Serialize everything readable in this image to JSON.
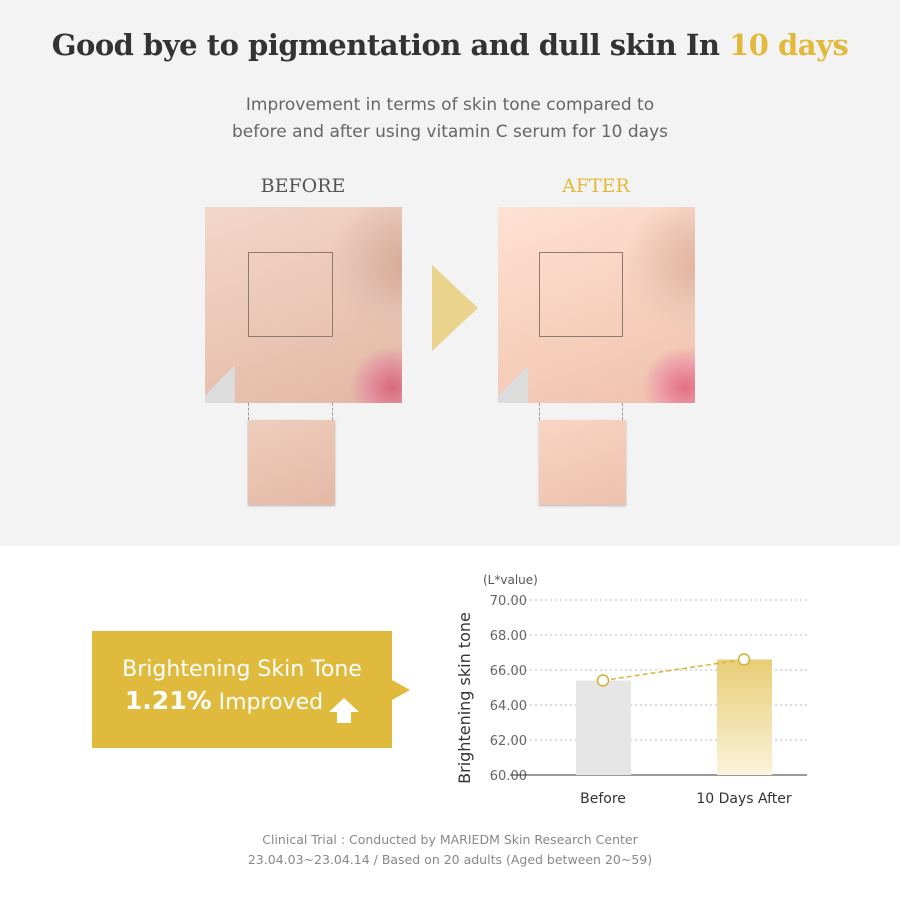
{
  "header": {
    "title_main": "Good bye to pigmentation and dull skin In ",
    "title_highlight": "10 days",
    "subtitle_line1": "Improvement in terms of skin tone compared to",
    "subtitle_line2": "before and after using vitamin C serum for 10 days"
  },
  "comparison": {
    "before_label": "BEFORE",
    "after_label": "AFTER",
    "arrow_icon": "chevron-right-icon"
  },
  "badge": {
    "line1": "Brightening Skin Tone",
    "percent": "1.21%",
    "improved": "Improved",
    "icon": "arrow-up-icon"
  },
  "footer": {
    "line1": "Clinical Trial : Conducted by MARIEDM Skin Research Center",
    "line2": "23.04.03~23.04.14 / Based on 20 adults (Aged between 20~59)"
  },
  "colors": {
    "accent": "#e0ba3c",
    "before_bar": "#e6e6e6"
  },
  "chart_data": {
    "type": "bar",
    "unit_label": "(L*value)",
    "ylabel": "Brightening skin tone",
    "categories": [
      "Before",
      "10 Days After"
    ],
    "values": [
      65.4,
      66.6
    ],
    "ylim": [
      60,
      70
    ],
    "yticks": [
      "60.00",
      "62.00",
      "64.00",
      "66.00",
      "68.00",
      "70.00"
    ],
    "grid": true,
    "trend_line": "dashed connecting bar tops"
  }
}
